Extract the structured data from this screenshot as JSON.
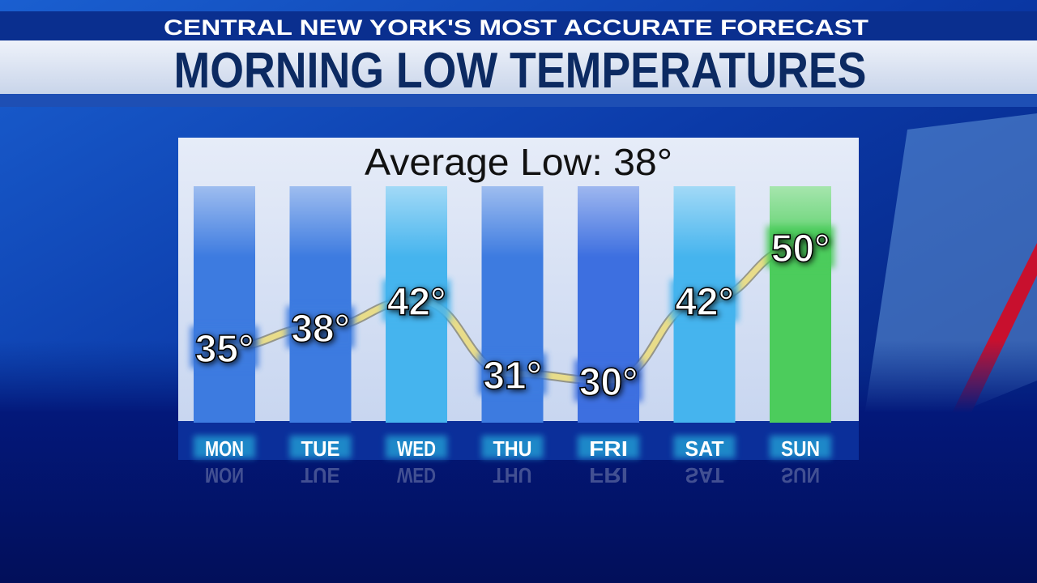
{
  "header": "CENTRAL NEW YORK'S MOST ACCURATE FORECAST",
  "chart_data": {
    "type": "line",
    "title": "MORNING LOW TEMPERATURES",
    "subtitle": "Average Low: 38°",
    "categories": [
      "MON",
      "TUE",
      "WED",
      "THU",
      "FRI",
      "SAT",
      "SUN"
    ],
    "values": [
      35,
      38,
      42,
      31,
      30,
      42,
      50
    ],
    "value_labels": [
      "35°",
      "38°",
      "42°",
      "31°",
      "30°",
      "42°",
      "50°"
    ],
    "color": "#e8dc8a",
    "colors": [
      "#3d7be0",
      "#3d7be0",
      "#45b4ee",
      "#3d7be0",
      "#3d6fe0",
      "#45b4ee",
      "#4ccc5c"
    ]
  }
}
